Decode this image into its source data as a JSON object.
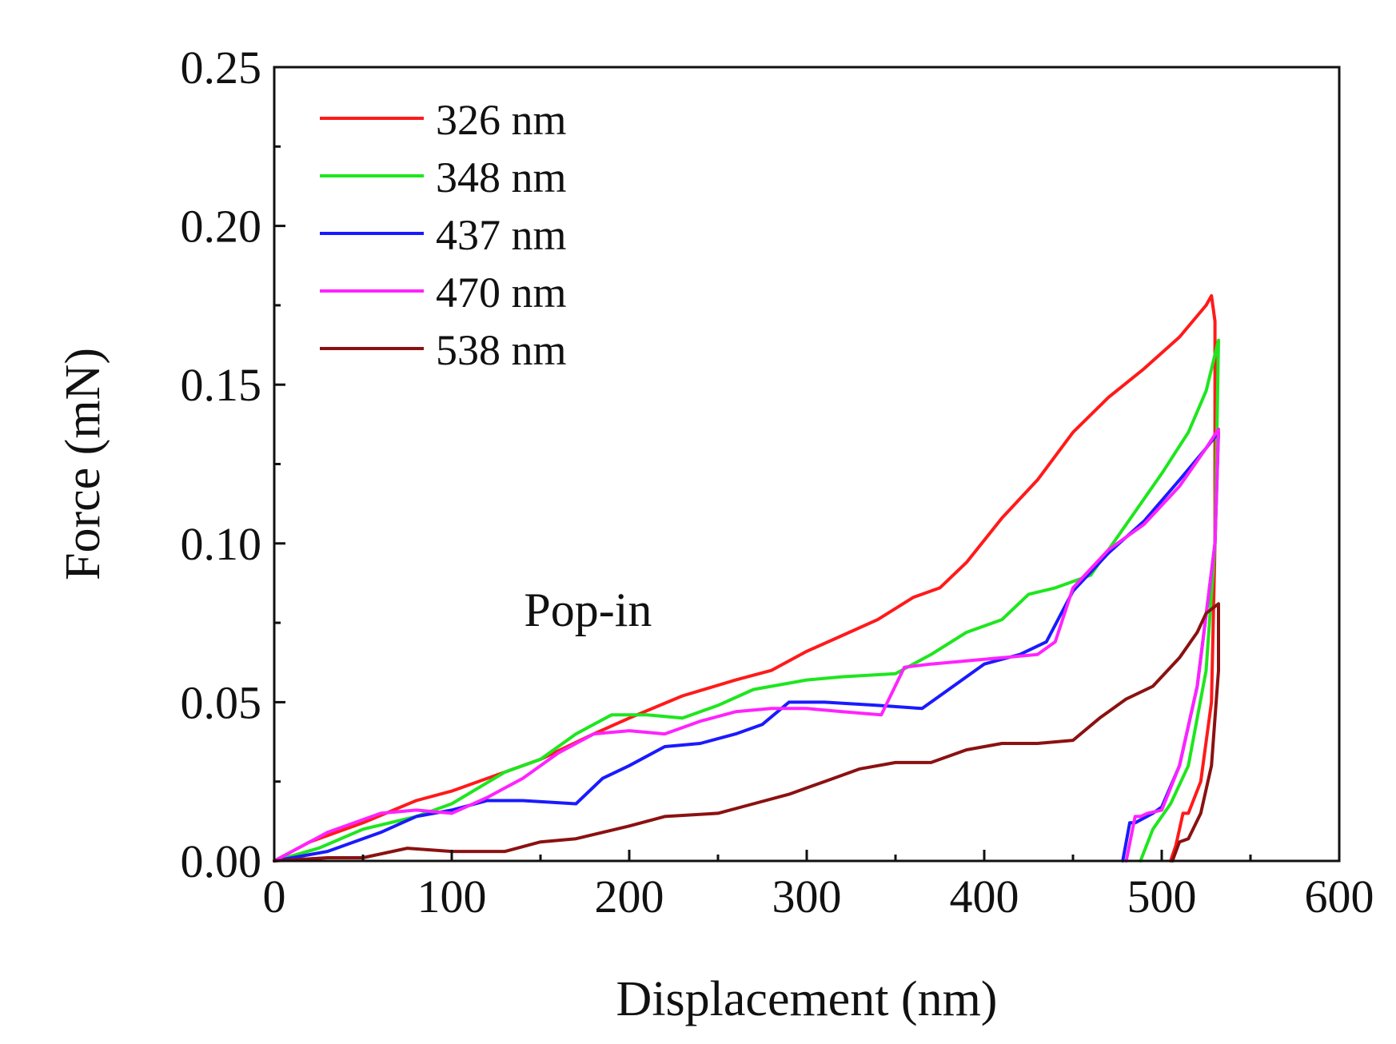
{
  "chart_data": {
    "type": "line",
    "title": "",
    "xlabel": "Displacement (nm)",
    "ylabel": "Force (mN)",
    "xlim": [
      0,
      600
    ],
    "ylim": [
      0,
      0.25
    ],
    "xticks": [
      0,
      100,
      200,
      300,
      400,
      500,
      600
    ],
    "xtick_labels": [
      "0",
      "100",
      "200",
      "300",
      "400",
      "500",
      "600"
    ],
    "yticks": [
      0,
      0.05,
      0.1,
      0.15,
      0.2,
      0.25
    ],
    "ytick_labels": [
      "0.00",
      "0.05",
      "0.10",
      "0.15",
      "0.20",
      "0.25"
    ],
    "grid": false,
    "legend_position": "top-left",
    "annotations": [
      {
        "text": "Pop-in",
        "x": 170,
        "y": 0.079
      }
    ],
    "series": [
      {
        "name": "326 nm",
        "color": "#ff1a1a",
        "points": [
          [
            0,
            0
          ],
          [
            20,
            0.006
          ],
          [
            50,
            0.012
          ],
          [
            80,
            0.019
          ],
          [
            100,
            0.022
          ],
          [
            120,
            0.026
          ],
          [
            150,
            0.032
          ],
          [
            180,
            0.04
          ],
          [
            200,
            0.045
          ],
          [
            230,
            0.052
          ],
          [
            260,
            0.057
          ],
          [
            280,
            0.06
          ],
          [
            300,
            0.066
          ],
          [
            320,
            0.071
          ],
          [
            340,
            0.076
          ],
          [
            360,
            0.083
          ],
          [
            375,
            0.086
          ],
          [
            390,
            0.094
          ],
          [
            410,
            0.108
          ],
          [
            430,
            0.12
          ],
          [
            450,
            0.135
          ],
          [
            470,
            0.146
          ],
          [
            490,
            0.155
          ],
          [
            510,
            0.165
          ],
          [
            525,
            0.175
          ],
          [
            528,
            0.178
          ],
          [
            530,
            0.17
          ],
          [
            530,
            0.1
          ],
          [
            528,
            0.05
          ],
          [
            522,
            0.025
          ],
          [
            515,
            0.015
          ],
          [
            512,
            0.015
          ],
          [
            508,
            0.005
          ],
          [
            505,
            0
          ]
        ]
      },
      {
        "name": "348 nm",
        "color": "#1ee61e",
        "points": [
          [
            0,
            0
          ],
          [
            25,
            0.004
          ],
          [
            50,
            0.01
          ],
          [
            80,
            0.014
          ],
          [
            100,
            0.018
          ],
          [
            130,
            0.028
          ],
          [
            150,
            0.032
          ],
          [
            170,
            0.04
          ],
          [
            190,
            0.046
          ],
          [
            210,
            0.046
          ],
          [
            230,
            0.045
          ],
          [
            250,
            0.049
          ],
          [
            270,
            0.054
          ],
          [
            300,
            0.057
          ],
          [
            320,
            0.058
          ],
          [
            350,
            0.059
          ],
          [
            370,
            0.065
          ],
          [
            390,
            0.072
          ],
          [
            410,
            0.076
          ],
          [
            425,
            0.084
          ],
          [
            440,
            0.086
          ],
          [
            460,
            0.09
          ],
          [
            480,
            0.106
          ],
          [
            500,
            0.122
          ],
          [
            515,
            0.135
          ],
          [
            525,
            0.148
          ],
          [
            532,
            0.164
          ],
          [
            530,
            0.1
          ],
          [
            525,
            0.06
          ],
          [
            515,
            0.03
          ],
          [
            505,
            0.018
          ],
          [
            500,
            0.014
          ],
          [
            495,
            0.01
          ],
          [
            488,
            0
          ]
        ]
      },
      {
        "name": "437 nm",
        "color": "#1a1aff",
        "points": [
          [
            0,
            0
          ],
          [
            30,
            0.003
          ],
          [
            60,
            0.009
          ],
          [
            80,
            0.014
          ],
          [
            100,
            0.016
          ],
          [
            120,
            0.019
          ],
          [
            140,
            0.019
          ],
          [
            170,
            0.018
          ],
          [
            185,
            0.026
          ],
          [
            200,
            0.03
          ],
          [
            220,
            0.036
          ],
          [
            240,
            0.037
          ],
          [
            260,
            0.04
          ],
          [
            275,
            0.043
          ],
          [
            290,
            0.05
          ],
          [
            310,
            0.05
          ],
          [
            340,
            0.049
          ],
          [
            365,
            0.048
          ],
          [
            380,
            0.054
          ],
          [
            400,
            0.062
          ],
          [
            420,
            0.065
          ],
          [
            435,
            0.069
          ],
          [
            450,
            0.085
          ],
          [
            470,
            0.097
          ],
          [
            490,
            0.107
          ],
          [
            510,
            0.12
          ],
          [
            525,
            0.13
          ],
          [
            532,
            0.135
          ],
          [
            530,
            0.1
          ],
          [
            520,
            0.055
          ],
          [
            510,
            0.03
          ],
          [
            500,
            0.017
          ],
          [
            495,
            0.015
          ],
          [
            485,
            0.012
          ],
          [
            482,
            0.012
          ],
          [
            478,
            0
          ]
        ]
      },
      {
        "name": "470 nm",
        "color": "#ff22ff",
        "points": [
          [
            0,
            0
          ],
          [
            30,
            0.009
          ],
          [
            60,
            0.015
          ],
          [
            80,
            0.016
          ],
          [
            100,
            0.015
          ],
          [
            120,
            0.02
          ],
          [
            140,
            0.026
          ],
          [
            160,
            0.034
          ],
          [
            180,
            0.04
          ],
          [
            200,
            0.041
          ],
          [
            220,
            0.04
          ],
          [
            240,
            0.044
          ],
          [
            260,
            0.047
          ],
          [
            280,
            0.048
          ],
          [
            300,
            0.048
          ],
          [
            320,
            0.047
          ],
          [
            342,
            0.046
          ],
          [
            355,
            0.061
          ],
          [
            370,
            0.062
          ],
          [
            390,
            0.063
          ],
          [
            410,
            0.064
          ],
          [
            430,
            0.065
          ],
          [
            440,
            0.069
          ],
          [
            450,
            0.086
          ],
          [
            470,
            0.098
          ],
          [
            490,
            0.106
          ],
          [
            510,
            0.118
          ],
          [
            525,
            0.13
          ],
          [
            532,
            0.136
          ],
          [
            530,
            0.1
          ],
          [
            520,
            0.055
          ],
          [
            510,
            0.03
          ],
          [
            500,
            0.016
          ],
          [
            492,
            0.015
          ],
          [
            488,
            0.014
          ],
          [
            485,
            0.014
          ],
          [
            480,
            0
          ]
        ]
      },
      {
        "name": "538 nm",
        "color": "#8b1111",
        "points": [
          [
            0,
            0
          ],
          [
            30,
            0.001
          ],
          [
            50,
            0.001
          ],
          [
            75,
            0.004
          ],
          [
            100,
            0.003
          ],
          [
            130,
            0.003
          ],
          [
            150,
            0.006
          ],
          [
            170,
            0.007
          ],
          [
            200,
            0.011
          ],
          [
            220,
            0.014
          ],
          [
            250,
            0.015
          ],
          [
            270,
            0.018
          ],
          [
            290,
            0.021
          ],
          [
            310,
            0.025
          ],
          [
            330,
            0.029
          ],
          [
            350,
            0.031
          ],
          [
            370,
            0.031
          ],
          [
            390,
            0.035
          ],
          [
            410,
            0.037
          ],
          [
            430,
            0.037
          ],
          [
            450,
            0.038
          ],
          [
            465,
            0.045
          ],
          [
            480,
            0.051
          ],
          [
            495,
            0.055
          ],
          [
            510,
            0.064
          ],
          [
            520,
            0.072
          ],
          [
            525,
            0.078
          ],
          [
            532,
            0.081
          ],
          [
            532,
            0.06
          ],
          [
            528,
            0.03
          ],
          [
            522,
            0.015
          ],
          [
            515,
            0.007
          ],
          [
            510,
            0.006
          ],
          [
            506,
            0
          ]
        ]
      }
    ]
  }
}
